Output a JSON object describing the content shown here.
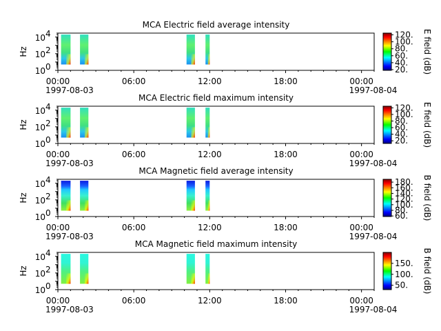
{
  "chart_data": [
    {
      "type": "heatmap",
      "title": "MCA  Electric field average intensity",
      "ylabel": "Hz",
      "y_scale": "log",
      "ylim": [
        1,
        30000
      ],
      "y_ticks": [
        {
          "base": "10",
          "exp": "0"
        },
        {
          "base": "10",
          "exp": "2"
        },
        {
          "base": "10",
          "exp": "4"
        }
      ],
      "xlim": [
        "1997-08-03 00:00",
        "1997-08-04 01:00"
      ],
      "x_ticks": [
        "00:00",
        "06:00",
        "12:00",
        "18:00",
        "00:00"
      ],
      "x_dates": [
        "1997-08-03",
        "1997-08-04"
      ],
      "colorbar": {
        "label": "E field (dB)",
        "range": [
          18,
          125
        ],
        "ticks": [
          "20.",
          "40.",
          "60.",
          "80.",
          "100.",
          "120."
        ],
        "values": [
          20,
          40,
          60,
          80,
          100,
          120
        ]
      },
      "segments": [
        {
          "start": "00:15",
          "end": "01:00",
          "fmin": 5,
          "fmax": 20000,
          "palette": "e"
        },
        {
          "start": "01:45",
          "end": "02:25",
          "fmin": 5,
          "fmax": 20000,
          "palette": "e"
        },
        {
          "start": "10:10",
          "end": "10:50",
          "fmin": 5,
          "fmax": 20000,
          "palette": "e"
        },
        {
          "start": "11:40",
          "end": "12:00",
          "fmin": 5,
          "fmax": 20000,
          "palette": "e"
        }
      ]
    },
    {
      "type": "heatmap",
      "title": "MCA  Electric field maximum intensity",
      "ylabel": "Hz",
      "y_scale": "log",
      "ylim": [
        1,
        30000
      ],
      "y_ticks": [
        {
          "base": "10",
          "exp": "0"
        },
        {
          "base": "10",
          "exp": "2"
        },
        {
          "base": "10",
          "exp": "4"
        }
      ],
      "xlim": [
        "1997-08-03 00:00",
        "1997-08-04 01:00"
      ],
      "x_ticks": [
        "00:00",
        "06:00",
        "12:00",
        "18:00",
        "00:00"
      ],
      "x_dates": [
        "1997-08-03",
        "1997-08-04"
      ],
      "colorbar": {
        "label": "E field (dB)",
        "range": [
          12,
          125
        ],
        "ticks": [
          "20.",
          "40.",
          "60.",
          "80.",
          "100.",
          "120."
        ],
        "values": [
          20,
          40,
          60,
          80,
          100,
          120
        ]
      },
      "segments": [
        {
          "start": "00:15",
          "end": "01:00",
          "fmin": 5,
          "fmax": 20000,
          "palette": "e"
        },
        {
          "start": "01:45",
          "end": "02:25",
          "fmin": 5,
          "fmax": 20000,
          "palette": "e"
        },
        {
          "start": "10:10",
          "end": "10:50",
          "fmin": 5,
          "fmax": 20000,
          "palette": "e"
        },
        {
          "start": "11:40",
          "end": "12:00",
          "fmin": 5,
          "fmax": 20000,
          "palette": "e"
        }
      ]
    },
    {
      "type": "heatmap",
      "title": "MCA  Magnetic field average intensity",
      "ylabel": "Hz",
      "y_scale": "log",
      "ylim": [
        1,
        30000
      ],
      "y_ticks": [
        {
          "base": "10",
          "exp": "0"
        },
        {
          "base": "10",
          "exp": "2"
        },
        {
          "base": "10",
          "exp": "4"
        }
      ],
      "xlim": [
        "1997-08-03 00:00",
        "1997-08-04 01:00"
      ],
      "x_ticks": [
        "00:00",
        "06:00",
        "12:00",
        "18:00",
        "00:00"
      ],
      "x_dates": [
        "1997-08-03",
        "1997-08-04"
      ],
      "colorbar": {
        "label": "B field (dB)",
        "range": [
          58,
          190
        ],
        "ticks": [
          "60.",
          "80.",
          "100.",
          "120.",
          "140.",
          "160.",
          "180."
        ],
        "values": [
          60,
          80,
          100,
          120,
          140,
          160,
          180
        ]
      },
      "segments": [
        {
          "start": "00:15",
          "end": "01:00",
          "fmin": 5,
          "fmax": 20000,
          "palette": "b"
        },
        {
          "start": "01:45",
          "end": "02:25",
          "fmin": 5,
          "fmax": 20000,
          "palette": "b"
        },
        {
          "start": "10:10",
          "end": "10:50",
          "fmin": 5,
          "fmax": 20000,
          "palette": "b"
        },
        {
          "start": "11:40",
          "end": "12:00",
          "fmin": 5,
          "fmax": 20000,
          "palette": "b"
        }
      ]
    },
    {
      "type": "heatmap",
      "title": "MCA  Magnetic field maximum intensity",
      "ylabel": "Hz",
      "y_scale": "log",
      "ylim": [
        1,
        30000
      ],
      "y_ticks": [
        {
          "base": "10",
          "exp": "0"
        },
        {
          "base": "10",
          "exp": "2"
        },
        {
          "base": "10",
          "exp": "4"
        }
      ],
      "xlim": [
        "1997-08-03 00:00",
        "1997-08-04 01:00"
      ],
      "x_ticks": [
        "00:00",
        "06:00",
        "12:00",
        "18:00",
        "00:00"
      ],
      "x_dates": [
        "1997-08-03",
        "1997-08-04"
      ],
      "colorbar": {
        "label": "B field (dB)",
        "range": [
          30,
          200
        ],
        "ticks": [
          "50.",
          "100.",
          "150."
        ],
        "values": [
          50,
          100,
          150
        ]
      },
      "segments": [
        {
          "start": "00:15",
          "end": "01:00",
          "fmin": 5,
          "fmax": 20000,
          "palette": "bm"
        },
        {
          "start": "01:45",
          "end": "02:25",
          "fmin": 5,
          "fmax": 20000,
          "palette": "bm"
        },
        {
          "start": "10:10",
          "end": "10:50",
          "fmin": 5,
          "fmax": 20000,
          "palette": "bm"
        },
        {
          "start": "11:40",
          "end": "12:00",
          "fmin": 5,
          "fmax": 20000,
          "palette": "bm"
        }
      ]
    }
  ]
}
